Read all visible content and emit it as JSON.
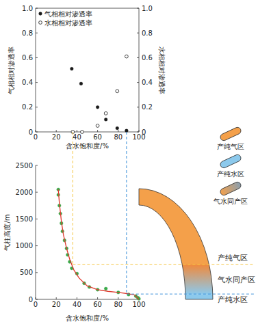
{
  "chart_data": [
    {
      "type": "scatter",
      "xlabel": "含水饱和度/%",
      "ylabel": "气相相对渗透率",
      "y2label": "水相相对渗透率",
      "xlim": [
        0,
        100
      ],
      "xticks": [
        0,
        20,
        40,
        60,
        80,
        100
      ],
      "ylim": [
        0,
        1
      ],
      "yticks": [
        0,
        0.2,
        0.4,
        0.6,
        0.8,
        {
          "value": 1,
          "label": "1.0"
        }
      ],
      "y2lim": [
        0,
        1
      ],
      "y2ticks": [
        0,
        0.2,
        0.4,
        0.6,
        0.8,
        {
          "value": 1,
          "label": "1.0"
        }
      ],
      "grid": false,
      "legend": "upper left",
      "series": [
        {
          "name": "气相相对渗透率",
          "color": "#1a1a1a",
          "marker": "filled",
          "x": [
            35,
            44,
            60,
            68,
            79,
            88
          ],
          "values": [
            0.51,
            0.39,
            0.2,
            0.1,
            0.03,
            0.01
          ]
        },
        {
          "name": "水相相对渗透率",
          "color": "#1a1a1a",
          "marker": "hollow",
          "axis": "y2",
          "x": [
            36,
            45,
            60,
            68,
            79,
            88
          ],
          "values": [
            0,
            0,
            0.05,
            0.15,
            0.33,
            0.61
          ]
        }
      ]
    },
    {
      "type": "scatter",
      "xlabel": "含水饱和度/%",
      "ylabel": "气柱高度/m",
      "xlim": [
        0,
        100
      ],
      "xticks": [
        0,
        20,
        40,
        60,
        80,
        100
      ],
      "ylim": [
        0,
        2500
      ],
      "yticks": [
        0,
        500,
        1000,
        1500,
        2000,
        2500
      ],
      "grid": false,
      "series": [
        {
          "type": "scatter",
          "color": "#3aaa4a",
          "marker": "filled",
          "x": [
            22,
            22,
            23,
            24,
            25,
            26,
            28,
            30,
            31,
            33,
            35,
            40,
            47,
            52,
            60,
            68,
            80,
            90,
            97,
            99,
            100
          ],
          "values": [
            2050,
            1950,
            1750,
            1600,
            1420,
            1270,
            1100,
            950,
            830,
            700,
            580,
            480,
            300,
            230,
            180,
            200,
            130,
            90,
            60,
            30,
            10
          ]
        },
        {
          "type": "line",
          "color": "#e03a2f",
          "line_style": "solid",
          "x": [
            22,
            23,
            25,
            27,
            30,
            33,
            37,
            42,
            50,
            60,
            70,
            80,
            90,
            96,
            100
          ],
          "values": [
            2050,
            1800,
            1450,
            1200,
            950,
            750,
            550,
            400,
            250,
            180,
            150,
            130,
            105,
            80,
            0
          ]
        }
      ],
      "guides": [
        {
          "x": 36,
          "y": 650,
          "color": "#f5c542"
        },
        {
          "x": 88,
          "y": 100,
          "color": "#3b8fd9"
        }
      ]
    }
  ],
  "diagram": {
    "zones": [
      {
        "label": "产纯气区",
        "color": "#f4a04a"
      },
      {
        "label": "气水同产区",
        "colors": [
          "#f08a3c",
          "#8cc9ec"
        ]
      },
      {
        "label": "产纯水区",
        "color": "#8cc9ec"
      }
    ],
    "legend": [
      {
        "label": "产纯气区",
        "color": "#f4a04a"
      },
      {
        "label": "产纯水区",
        "color": "#8cc9ec"
      },
      {
        "label": "气水同产区",
        "colors": [
          "#f4a04a",
          "#8a9fb0"
        ]
      }
    ]
  }
}
